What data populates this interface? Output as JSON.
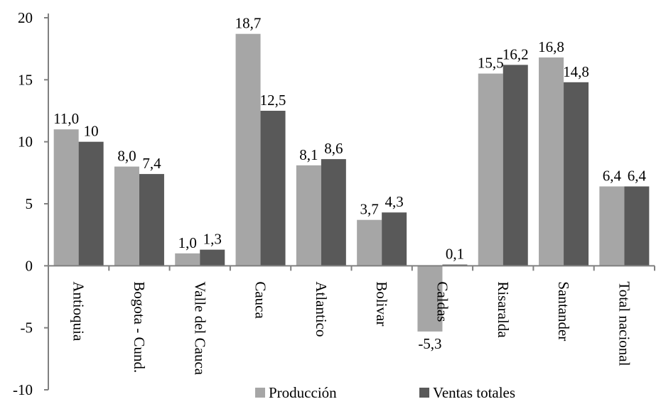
{
  "chart_data": {
    "type": "bar",
    "title": "",
    "xlabel": "",
    "ylabel": "",
    "ylim": [
      -10,
      20
    ],
    "yticks": [
      -10,
      -5,
      0,
      5,
      10,
      15,
      20
    ],
    "grid": false,
    "legend_position": "bottom",
    "categories": [
      "Antioquia",
      "Bogota - Cund.",
      "Valle del Cauca",
      "Cauca",
      "Atlantico",
      "Bolivar",
      "Caldas",
      "Risaralda",
      "Santander",
      "Total nacional"
    ],
    "series": [
      {
        "name": "Producción",
        "color": "#a6a6a6",
        "values": [
          11.0,
          8.0,
          1.0,
          18.7,
          8.1,
          3.7,
          -5.3,
          15.5,
          16.8,
          6.4
        ],
        "labels": [
          "11,0",
          "8,0",
          "1,0",
          "18,7",
          "8,1",
          "3,7",
          "-5,3",
          "15,5",
          "16,8",
          "6,4"
        ]
      },
      {
        "name": "Ventas totales",
        "color": "#595959",
        "values": [
          10,
          7.4,
          1.3,
          12.5,
          8.6,
          4.3,
          0.1,
          16.2,
          14.8,
          6.4
        ],
        "labels": [
          "10",
          "7,4",
          "1,3",
          "12,5",
          "8,6",
          "4,3",
          "0,1",
          "16,2",
          "14,8",
          "6,4"
        ]
      }
    ],
    "legend": {
      "items": [
        "Producción",
        "Ventas totales"
      ]
    }
  }
}
